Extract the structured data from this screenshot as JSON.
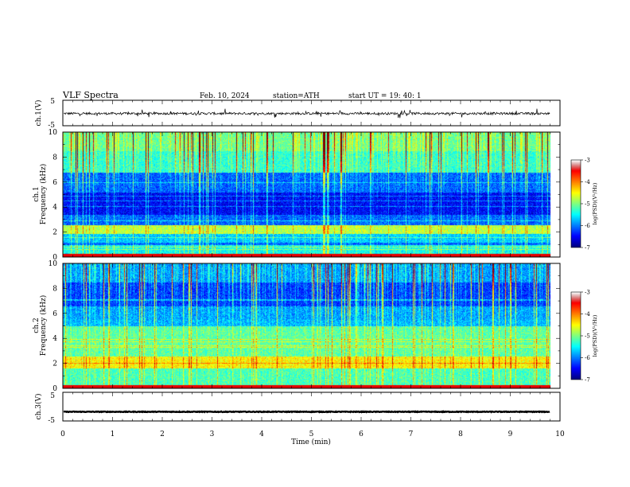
{
  "header": {
    "title": "VLF  Spectra",
    "date": "Feb. 10, 2024",
    "station": "station=ATH",
    "start": "start  UT  =   19: 40: 1"
  },
  "chart_data": [
    {
      "type": "line",
      "name": "ch1-waveform",
      "ylabel": "ch.1(V)",
      "ylim": [
        -5,
        5
      ],
      "yticks": [
        "5",
        "-5"
      ],
      "xlim": [
        0,
        10
      ],
      "x_end_min": 9.8,
      "y_center": -0.2,
      "y_spread": 0.45
    },
    {
      "type": "heatmap",
      "name": "ch1-spectrogram",
      "ylabel_top": "ch.1",
      "ylabel": "Frequency  (kHz)",
      "ylim": [
        0,
        10
      ],
      "yticks": [
        "0",
        "2",
        "4",
        "6",
        "8",
        "10"
      ],
      "xlim": [
        0,
        10
      ],
      "x_end_min": 9.8,
      "colorbar": {
        "label": "log(PSD)(V²/Hz)",
        "ticks": [
          "-3",
          "-4",
          "-5",
          "-6",
          "-7"
        ],
        "range": [
          -7,
          -3
        ]
      }
    },
    {
      "type": "heatmap",
      "name": "ch2-spectrogram",
      "ylabel_top": "ch.2",
      "ylabel": "Frequency  (kHz)",
      "ylim": [
        0,
        10
      ],
      "yticks": [
        "0",
        "2",
        "4",
        "6",
        "8",
        "10"
      ],
      "xlim": [
        0,
        10
      ],
      "x_end_min": 9.8,
      "colorbar": {
        "label": "log(PSD)(V²/Hz)",
        "ticks": [
          "-3",
          "-4",
          "-5",
          "-6",
          "-7"
        ],
        "range": [
          -7,
          -3
        ]
      }
    },
    {
      "type": "line",
      "name": "ch3-waveform",
      "ylabel": "ch.3(V)",
      "ylim": [
        -5,
        5
      ],
      "yticks": [
        "5",
        "-5"
      ],
      "xlim": [
        0,
        10
      ],
      "x_end_min": 9.8,
      "y_center": -1.8,
      "y_spread": 0.12,
      "xlabel": "Time  (min)",
      "xticks": [
        "0",
        "1",
        "2",
        "3",
        "4",
        "5",
        "6",
        "7",
        "8",
        "9",
        "10"
      ]
    }
  ]
}
